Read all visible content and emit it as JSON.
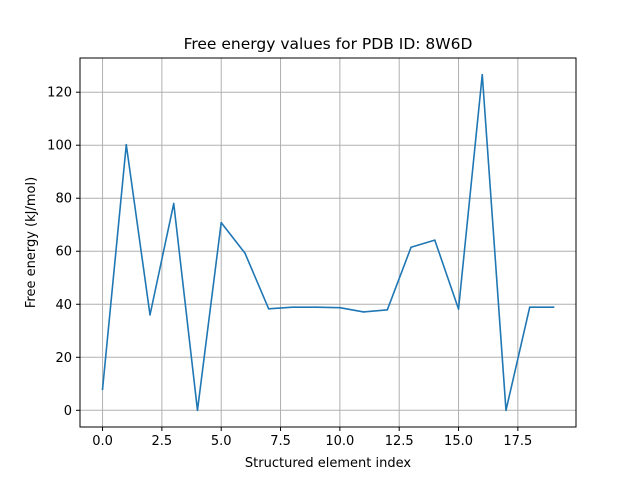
{
  "chart_data": {
    "type": "line",
    "title": "Free energy values for PDB ID: 8W6D",
    "xlabel": "Structured element index",
    "ylabel": "Free energy (kJ/mol)",
    "xlim": [
      -0.95,
      19.95
    ],
    "ylim": [
      -6.3,
      132.9
    ],
    "grid": true,
    "x_ticks": [
      0.0,
      2.5,
      5.0,
      7.5,
      10.0,
      12.5,
      15.0,
      17.5
    ],
    "x_tick_labels": [
      "0.0",
      "2.5",
      "5.0",
      "7.5",
      "10.0",
      "12.5",
      "15.0",
      "17.5"
    ],
    "y_ticks": [
      0,
      20,
      40,
      60,
      80,
      100,
      120
    ],
    "y_tick_labels": [
      "0",
      "20",
      "40",
      "60",
      "80",
      "100",
      "120"
    ],
    "series": [
      {
        "color": "#1f77b4",
        "x": [
          0,
          1,
          2,
          3,
          4,
          5,
          6,
          7,
          8,
          9,
          10,
          11,
          12,
          13,
          14,
          15,
          16,
          17,
          18,
          19
        ],
        "values": [
          8.0,
          100.2,
          36.0,
          78.0,
          0.0,
          70.8,
          59.3,
          38.3,
          38.9,
          38.9,
          38.7,
          37.1,
          37.9,
          61.5,
          64.2,
          38.2,
          126.6,
          0.0,
          38.9,
          38.9
        ]
      }
    ]
  }
}
